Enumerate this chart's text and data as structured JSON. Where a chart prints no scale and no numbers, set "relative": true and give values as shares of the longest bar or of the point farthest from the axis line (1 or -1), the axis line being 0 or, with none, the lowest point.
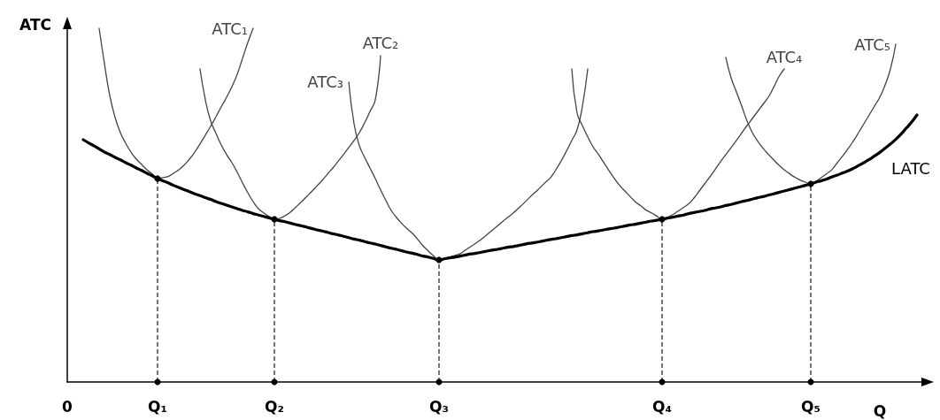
{
  "chart_data": {
    "type": "line",
    "relative": true,
    "xlabel": "Q",
    "ylabel": "ATC",
    "tick_labels": "x",
    "marker": "none",
    "line_style": "solid",
    "categories": [
      "0",
      null,
      null,
      null,
      null,
      null,
      null,
      null,
      null,
      null,
      null,
      null,
      null,
      null,
      null,
      null,
      null,
      "Q₁",
      null,
      null,
      null,
      null,
      null,
      null,
      null,
      null,
      null,
      null,
      null,
      null,
      null,
      null,
      null,
      null,
      null,
      null,
      null,
      null,
      null,
      "Q₂",
      null,
      null,
      null,
      null,
      null,
      null,
      null,
      null,
      null,
      null,
      null,
      null,
      null,
      null,
      null,
      null,
      null,
      null,
      null,
      null,
      null,
      null,
      null,
      null,
      null,
      null,
      null,
      null,
      null,
      null,
      "Q₃",
      null,
      null,
      null,
      null,
      null,
      null,
      null,
      null,
      null,
      null,
      null,
      null,
      null,
      null,
      null,
      null,
      null,
      null,
      null,
      null,
      null,
      null,
      null,
      null,
      null,
      null,
      null,
      null,
      null,
      null,
      null,
      null,
      null,
      null,
      null,
      null,
      null,
      null,
      null,
      null,
      null,
      "Q₄",
      null,
      null,
      null,
      null,
      null,
      null,
      null,
      null,
      null,
      null,
      null,
      null,
      null,
      null,
      null,
      null,
      null,
      null,
      null,
      null,
      null,
      null,
      null,
      null,
      null,
      null,
      null,
      "Q₅",
      null,
      null,
      null,
      null,
      null,
      null,
      null,
      null,
      null,
      null,
      null,
      null,
      null,
      null,
      null,
      null,
      null,
      null,
      null,
      null,
      null
    ],
    "series": [
      {
        "name": "LATC",
        "color": "#000000",
        "values": [
          null,
          null,
          null,
          0.685,
          0.676,
          0.668,
          0.659,
          0.65,
          0.643,
          0.635,
          0.628,
          0.62,
          0.613,
          0.605,
          0.598,
          0.59,
          0.583,
          0.575,
          0.569,
          0.563,
          0.556,
          0.55,
          0.544,
          0.538,
          0.532,
          0.527,
          0.521,
          0.516,
          0.51,
          0.505,
          0.5,
          0.495,
          0.49,
          0.485,
          0.481,
          0.476,
          0.472,
          0.468,
          0.464,
          0.46,
          0.456,
          0.453,
          0.449,
          0.445,
          0.442,
          0.438,
          0.434,
          0.43,
          0.427,
          0.423,
          0.419,
          0.416,
          0.412,
          0.408,
          0.404,
          0.401,
          0.397,
          0.393,
          0.39,
          0.386,
          0.382,
          0.378,
          0.375,
          0.371,
          0.367,
          0.364,
          0.36,
          0.356,
          0.353,
          0.349,
          0.345,
          0.348,
          0.351,
          0.353,
          0.356,
          0.359,
          0.362,
          0.364,
          0.367,
          0.37,
          0.373,
          0.375,
          0.378,
          0.381,
          0.383,
          0.386,
          0.389,
          0.392,
          0.394,
          0.397,
          0.4,
          0.403,
          0.405,
          0.408,
          0.411,
          0.414,
          0.416,
          0.419,
          0.422,
          0.425,
          0.427,
          0.43,
          0.433,
          0.435,
          0.438,
          0.441,
          0.444,
          0.446,
          0.449,
          0.452,
          0.455,
          0.457,
          0.46,
          0.463,
          0.466,
          0.469,
          0.472,
          0.476,
          0.479,
          0.482,
          0.485,
          0.489,
          0.492,
          0.495,
          0.499,
          0.502,
          0.506,
          0.51,
          0.513,
          0.517,
          0.521,
          0.524,
          0.528,
          0.532,
          0.536,
          0.54,
          0.544,
          0.548,
          0.552,
          0.556,
          0.56,
          0.565,
          0.569,
          0.574,
          0.58,
          0.585,
          0.591,
          0.597,
          0.604,
          0.612,
          0.62,
          0.629,
          0.639,
          0.649,
          0.661,
          0.673,
          0.686,
          0.701,
          0.718,
          0.735,
          0.755,
          null
        ]
      },
      {
        "name": "ATC₁",
        "color": "#444444",
        "values": [
          null,
          null,
          null,
          null,
          null,
          null,
          1.0,
          0.9,
          0.81,
          0.748,
          0.705,
          0.675,
          0.65,
          0.63,
          0.615,
          0.6,
          0.588,
          0.575,
          0.578,
          0.581,
          0.59,
          0.6,
          0.613,
          0.63,
          0.65,
          0.673,
          0.698,
          0.723,
          0.75,
          0.778,
          0.805,
          0.835,
          0.87,
          0.915,
          0.96,
          1.0,
          null,
          null,
          null,
          null,
          null,
          null,
          null,
          null,
          null,
          null,
          null,
          null,
          null,
          null,
          null,
          null,
          null,
          null,
          null,
          null,
          null,
          null,
          null,
          null,
          null,
          null,
          null,
          null,
          null,
          null,
          null,
          null,
          null,
          null,
          null,
          null,
          null,
          null,
          null,
          null,
          null,
          null,
          null,
          null,
          null,
          null,
          null,
          null,
          null,
          null,
          null,
          null,
          null,
          null,
          null,
          null,
          null,
          null,
          null,
          null,
          null,
          null,
          null,
          null,
          null,
          null,
          null,
          null,
          null,
          null,
          null,
          null,
          null,
          null,
          null,
          null,
          null,
          null,
          null,
          null,
          null,
          null,
          null,
          null,
          null,
          null,
          null,
          null,
          null,
          null,
          null,
          null,
          null,
          null,
          null,
          null,
          null,
          null,
          null,
          null,
          null,
          null,
          null,
          null,
          null,
          null,
          null,
          null,
          null,
          null,
          null,
          null,
          null,
          null,
          null,
          null,
          null,
          null,
          null,
          null,
          null,
          null,
          null,
          null,
          null,
          null
        ]
      },
      {
        "name": "ATC₂",
        "color": "#444444",
        "values": [
          null,
          null,
          null,
          null,
          null,
          null,
          null,
          null,
          null,
          null,
          null,
          null,
          null,
          null,
          null,
          null,
          null,
          null,
          null,
          null,
          null,
          null,
          null,
          null,
          null,
          0.885,
          0.798,
          0.738,
          0.703,
          0.67,
          0.643,
          0.62,
          0.593,
          0.563,
          0.535,
          0.51,
          0.49,
          0.478,
          0.468,
          0.46,
          0.463,
          0.47,
          0.48,
          0.494,
          0.508,
          0.523,
          0.538,
          0.554,
          0.57,
          0.588,
          0.605,
          0.624,
          0.643,
          0.663,
          0.683,
          0.705,
          0.733,
          0.765,
          0.798,
          0.923,
          null,
          null,
          null,
          null,
          null,
          null,
          null,
          null,
          null,
          null,
          null,
          null,
          null,
          null,
          null,
          null,
          null,
          null,
          null,
          null,
          null,
          null,
          null,
          null,
          null,
          null,
          null,
          null,
          null,
          null,
          null,
          null,
          null,
          null,
          null,
          null,
          null,
          null,
          null,
          null,
          null,
          null,
          null,
          null,
          null,
          null,
          null,
          null,
          null,
          null,
          null,
          null,
          null,
          null,
          null,
          null,
          null,
          null,
          null,
          null,
          null,
          null,
          null,
          null,
          null,
          null,
          null,
          null,
          null,
          null,
          null,
          null,
          null,
          null,
          null,
          null,
          null,
          null,
          null,
          null,
          null,
          null,
          null,
          null,
          null,
          null,
          null,
          null,
          null,
          null,
          null,
          null,
          null,
          null,
          null,
          null,
          null,
          null,
          null,
          null,
          null,
          null
        ]
      },
      {
        "name": "ATC₃",
        "color": "#444444",
        "values": [
          null,
          null,
          null,
          null,
          null,
          null,
          null,
          null,
          null,
          null,
          null,
          null,
          null,
          null,
          null,
          null,
          null,
          null,
          null,
          null,
          null,
          null,
          null,
          null,
          null,
          null,
          null,
          null,
          null,
          null,
          null,
          null,
          null,
          null,
          null,
          null,
          null,
          null,
          null,
          null,
          null,
          null,
          null,
          null,
          null,
          null,
          null,
          null,
          null,
          null,
          null,
          null,
          null,
          0.848,
          0.73,
          0.668,
          0.635,
          0.605,
          0.575,
          0.543,
          0.513,
          0.485,
          0.465,
          0.448,
          0.433,
          0.42,
          0.403,
          0.385,
          0.37,
          0.356,
          0.345,
          0.349,
          0.353,
          0.358,
          0.363,
          0.373,
          0.383,
          0.393,
          0.404,
          0.416,
          0.429,
          0.441,
          0.454,
          0.466,
          0.478,
          0.492,
          0.506,
          0.521,
          0.535,
          0.549,
          0.564,
          0.578,
          0.6,
          0.625,
          0.653,
          0.683,
          0.713,
          0.78,
          0.885,
          null,
          null,
          null,
          null,
          null,
          null,
          null,
          null,
          null,
          null,
          null,
          null,
          null,
          null,
          null,
          null,
          null,
          null,
          null,
          null,
          null,
          null,
          null,
          null,
          null,
          null,
          null,
          null,
          null,
          null,
          null,
          null,
          null,
          null,
          null,
          null,
          null,
          null,
          null,
          null,
          null,
          null,
          null,
          null,
          null,
          null,
          null,
          null,
          null,
          null,
          null,
          null,
          null,
          null,
          null,
          null,
          null,
          null,
          null,
          null,
          null,
          null,
          null
        ]
      },
      {
        "name": "ATC₄",
        "color": "#444444",
        "values": [
          null,
          null,
          null,
          null,
          null,
          null,
          null,
          null,
          null,
          null,
          null,
          null,
          null,
          null,
          null,
          null,
          null,
          null,
          null,
          null,
          null,
          null,
          null,
          null,
          null,
          null,
          null,
          null,
          null,
          null,
          null,
          null,
          null,
          null,
          null,
          null,
          null,
          null,
          null,
          null,
          null,
          null,
          null,
          null,
          null,
          null,
          null,
          null,
          null,
          null,
          null,
          null,
          null,
          null,
          null,
          null,
          null,
          null,
          null,
          null,
          null,
          null,
          null,
          null,
          null,
          null,
          null,
          null,
          null,
          null,
          null,
          null,
          null,
          null,
          null,
          null,
          null,
          null,
          null,
          null,
          null,
          null,
          null,
          null,
          null,
          null,
          null,
          null,
          null,
          null,
          null,
          null,
          null,
          null,
          null,
          0.885,
          0.76,
          0.725,
          0.693,
          0.665,
          0.644,
          0.621,
          0.598,
          0.576,
          0.556,
          0.54,
          0.524,
          0.509,
          0.498,
          0.486,
          0.478,
          0.469,
          0.46,
          0.466,
          0.473,
          0.483,
          0.493,
          0.504,
          0.52,
          0.54,
          0.56,
          0.58,
          0.601,
          0.623,
          0.643,
          0.663,
          0.683,
          0.704,
          0.725,
          0.745,
          0.765,
          0.785,
          0.805,
          0.833,
          0.863,
          0.885,
          null,
          null,
          null,
          null,
          null,
          null,
          null,
          null,
          null,
          null,
          null,
          null,
          null,
          null,
          null,
          null,
          null,
          null,
          null,
          null,
          null,
          null,
          null,
          null,
          null,
          null
        ]
      },
      {
        "name": "ATC₅",
        "color": "#444444",
        "values": [
          null,
          null,
          null,
          null,
          null,
          null,
          null,
          null,
          null,
          null,
          null,
          null,
          null,
          null,
          null,
          null,
          null,
          null,
          null,
          null,
          null,
          null,
          null,
          null,
          null,
          null,
          null,
          null,
          null,
          null,
          null,
          null,
          null,
          null,
          null,
          null,
          null,
          null,
          null,
          null,
          null,
          null,
          null,
          null,
          null,
          null,
          null,
          null,
          null,
          null,
          null,
          null,
          null,
          null,
          null,
          null,
          null,
          null,
          null,
          null,
          null,
          null,
          null,
          null,
          null,
          null,
          null,
          null,
          null,
          null,
          null,
          null,
          null,
          null,
          null,
          null,
          null,
          null,
          null,
          null,
          null,
          null,
          null,
          null,
          null,
          null,
          null,
          null,
          null,
          null,
          null,
          null,
          null,
          null,
          null,
          null,
          null,
          null,
          null,
          null,
          null,
          null,
          null,
          null,
          null,
          null,
          null,
          null,
          null,
          null,
          null,
          null,
          null,
          null,
          null,
          null,
          null,
          null,
          null,
          null,
          null,
          null,
          null,
          null,
          0.918,
          0.86,
          0.82,
          0.78,
          0.738,
          0.705,
          0.681,
          0.661,
          0.644,
          0.628,
          0.613,
          0.6,
          0.589,
          0.579,
          0.571,
          0.565,
          0.56,
          0.568,
          0.578,
          0.589,
          0.601,
          0.62,
          0.639,
          0.659,
          0.681,
          0.705,
          0.73,
          0.755,
          0.78,
          0.805,
          0.84,
          0.885,
          0.955,
          null,
          null,
          null,
          null,
          null
        ]
      },
      {
        "type": "lollipop",
        "color": "#000000",
        "line_style": "dashed",
        "marker": "circle",
        "values": [
          null,
          null,
          null,
          null,
          null,
          null,
          null,
          null,
          null,
          null,
          null,
          null,
          null,
          null,
          null,
          null,
          null,
          0.575,
          null,
          null,
          null,
          null,
          null,
          null,
          null,
          null,
          null,
          null,
          null,
          null,
          null,
          null,
          null,
          null,
          null,
          null,
          null,
          null,
          null,
          0.46,
          null,
          null,
          null,
          null,
          null,
          null,
          null,
          null,
          null,
          null,
          null,
          null,
          null,
          null,
          null,
          null,
          null,
          null,
          null,
          null,
          null,
          null,
          null,
          null,
          null,
          null,
          null,
          null,
          null,
          null,
          0.345,
          null,
          null,
          null,
          null,
          null,
          null,
          null,
          null,
          null,
          null,
          null,
          null,
          null,
          null,
          null,
          null,
          null,
          null,
          null,
          null,
          null,
          null,
          null,
          null,
          null,
          null,
          null,
          null,
          null,
          null,
          null,
          null,
          null,
          null,
          null,
          null,
          null,
          null,
          null,
          null,
          null,
          0.46,
          null,
          null,
          null,
          null,
          null,
          null,
          null,
          null,
          null,
          null,
          null,
          null,
          null,
          null,
          null,
          null,
          null,
          null,
          null,
          null,
          null,
          null,
          null,
          null,
          null,
          null,
          null,
          0.56,
          null,
          null,
          null,
          null,
          null,
          null,
          null,
          null,
          null,
          null,
          null,
          null,
          null,
          null,
          null,
          null,
          null,
          null,
          null,
          null,
          null
        ]
      },
      {
        "type": "scatter",
        "color": "#000000",
        "marker": "circle",
        "values": [
          null,
          null,
          null,
          null,
          null,
          null,
          null,
          null,
          null,
          null,
          null,
          null,
          null,
          null,
          null,
          null,
          null,
          0,
          null,
          null,
          null,
          null,
          null,
          null,
          null,
          null,
          null,
          null,
          null,
          null,
          null,
          null,
          null,
          null,
          null,
          null,
          null,
          null,
          null,
          0,
          null,
          null,
          null,
          null,
          null,
          null,
          null,
          null,
          null,
          null,
          null,
          null,
          null,
          null,
          null,
          null,
          null,
          null,
          null,
          null,
          null,
          null,
          null,
          null,
          null,
          null,
          null,
          null,
          null,
          null,
          0,
          null,
          null,
          null,
          null,
          null,
          null,
          null,
          null,
          null,
          null,
          null,
          null,
          null,
          null,
          null,
          null,
          null,
          null,
          null,
          null,
          null,
          null,
          null,
          null,
          null,
          null,
          null,
          null,
          null,
          null,
          null,
          null,
          null,
          null,
          null,
          null,
          null,
          null,
          null,
          null,
          null,
          0,
          null,
          null,
          null,
          null,
          null,
          null,
          null,
          null,
          null,
          null,
          null,
          null,
          null,
          null,
          null,
          null,
          null,
          null,
          null,
          null,
          null,
          null,
          null,
          null,
          null,
          null,
          null,
          0,
          null,
          null,
          null,
          null,
          null,
          null,
          null,
          null,
          null,
          null,
          null,
          null,
          null,
          null,
          null,
          null,
          null,
          null,
          null,
          null,
          null
        ]
      }
    ]
  }
}
